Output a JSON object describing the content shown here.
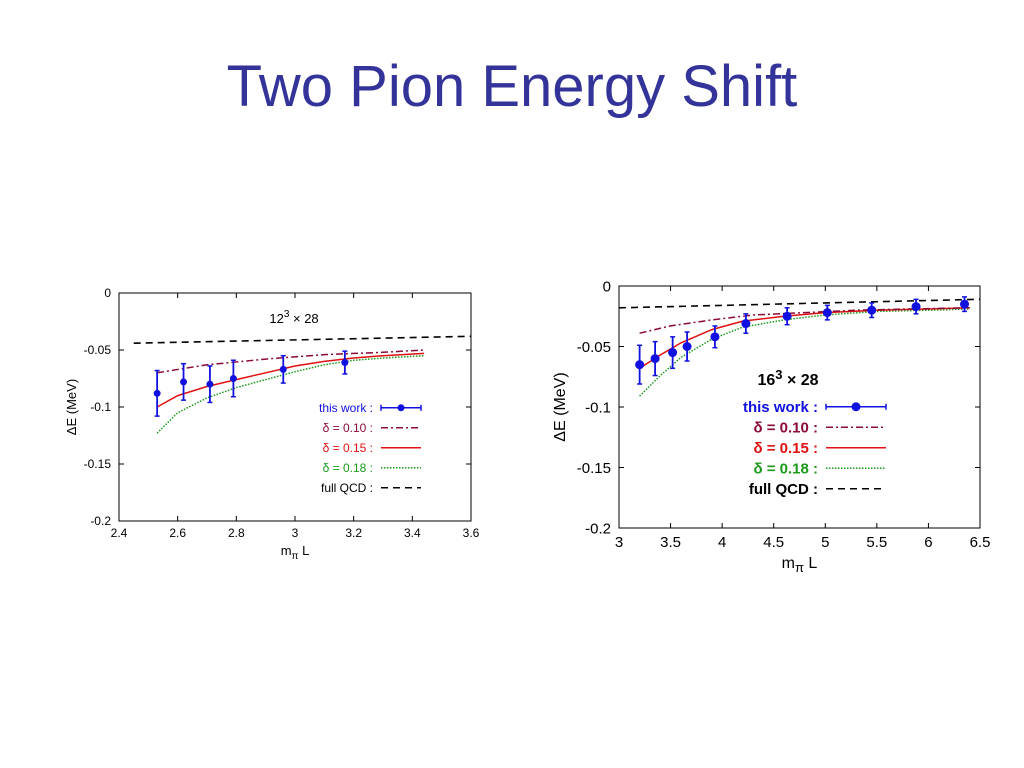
{
  "slide": {
    "title": "Two Pion Energy Shift"
  },
  "colors": {
    "title": "#333399",
    "this_work": "#1010e0",
    "delta_010": "#8b0a3a",
    "delta_015": "#e01010",
    "delta_018": "#1a9a1a",
    "full_qcd": "#000000"
  },
  "chart_data": [
    {
      "type": "scatter",
      "title": "12^3 × 28",
      "title_base": "12",
      "title_exp": "3",
      "title_rest": " × 28",
      "xlabel": "mπ L",
      "xlabel_main": "m",
      "xlabel_sub": "π",
      "xlabel_tail": " L",
      "ylabel": "ΔE (MeV)",
      "xlim": [
        2.4,
        3.6
      ],
      "ylim": [
        -0.2,
        0
      ],
      "xticks": [
        "2.4",
        "2.6",
        "2.8",
        "3",
        "3.2",
        "3.4",
        "3.6"
      ],
      "yticks": [
        "0",
        "-0.05",
        "-0.1",
        "-0.15",
        "-0.2"
      ],
      "grid": false,
      "legend_position": "right",
      "series": [
        {
          "name": "this work :",
          "style": "points",
          "color_key": "this_work",
          "x": [
            2.53,
            2.62,
            2.71,
            2.79,
            2.96,
            3.17
          ],
          "y": [
            -0.088,
            -0.078,
            -0.08,
            -0.075,
            -0.067,
            -0.061
          ],
          "err": [
            0.02,
            0.016,
            0.016,
            0.016,
            0.012,
            0.01
          ]
        },
        {
          "name": "δ = 0.10 :",
          "style": "dashdot",
          "color_key": "delta_010",
          "x": [
            2.53,
            2.7,
            2.9,
            3.1,
            3.3,
            3.44
          ],
          "y": [
            -0.07,
            -0.063,
            -0.058,
            -0.054,
            -0.052,
            -0.05
          ]
        },
        {
          "name": "δ = 0.15 :",
          "style": "solid",
          "color_key": "delta_015",
          "x": [
            2.53,
            2.6,
            2.7,
            2.8,
            2.9,
            3.0,
            3.1,
            3.2,
            3.3,
            3.44
          ],
          "y": [
            -0.1,
            -0.09,
            -0.082,
            -0.076,
            -0.07,
            -0.064,
            -0.06,
            -0.057,
            -0.055,
            -0.053
          ]
        },
        {
          "name": "δ = 0.18 :",
          "style": "dotted",
          "color_key": "delta_018",
          "x": [
            2.53,
            2.6,
            2.7,
            2.8,
            2.9,
            3.0,
            3.1,
            3.2,
            3.3,
            3.44
          ],
          "y": [
            -0.123,
            -0.105,
            -0.092,
            -0.083,
            -0.076,
            -0.069,
            -0.063,
            -0.059,
            -0.057,
            -0.055
          ]
        },
        {
          "name": "full QCD :",
          "style": "dashed",
          "color_key": "full_qcd",
          "x": [
            2.45,
            3.6
          ],
          "y": [
            -0.044,
            -0.038
          ]
        }
      ]
    },
    {
      "type": "scatter",
      "title": "16^3 × 28",
      "title_base": "16",
      "title_exp": "3",
      "title_rest": " × 28",
      "xlabel": "mπ L",
      "xlabel_main": "m",
      "xlabel_sub": "π",
      "xlabel_tail": " L",
      "ylabel": "ΔE (MeV)",
      "xlim": [
        3,
        6.5
      ],
      "ylim": [
        -0.2,
        0
      ],
      "xticks": [
        "3",
        "3.5",
        "4",
        "4.5",
        "5",
        "5.5",
        "6",
        "6.5"
      ],
      "yticks": [
        "0",
        "-0.05",
        "-0.1",
        "-0.15",
        "-0.2"
      ],
      "grid": false,
      "legend_position": "center",
      "series": [
        {
          "name": "this work :",
          "style": "points",
          "color_key": "this_work",
          "x": [
            3.2,
            3.35,
            3.52,
            3.66,
            3.93,
            4.23,
            4.63,
            5.02,
            5.45,
            5.88,
            6.35
          ],
          "y": [
            -0.065,
            -0.06,
            -0.055,
            -0.05,
            -0.042,
            -0.031,
            -0.025,
            -0.022,
            -0.02,
            -0.017,
            -0.015
          ],
          "err": [
            0.016,
            0.014,
            0.013,
            0.012,
            0.009,
            0.008,
            0.007,
            0.006,
            0.006,
            0.006,
            0.006
          ]
        },
        {
          "name": "δ = 0.10 :",
          "style": "dashdot",
          "color_key": "delta_010",
          "x": [
            3.2,
            3.5,
            3.9,
            4.3,
            4.8,
            5.3,
            5.8,
            6.4
          ],
          "y": [
            -0.039,
            -0.033,
            -0.028,
            -0.024,
            -0.022,
            -0.02,
            -0.019,
            -0.018
          ]
        },
        {
          "name": "δ = 0.15 :",
          "style": "solid",
          "color_key": "delta_015",
          "x": [
            3.2,
            3.4,
            3.6,
            3.9,
            4.2,
            4.6,
            5.0,
            5.5,
            6.0,
            6.4
          ],
          "y": [
            -0.068,
            -0.057,
            -0.047,
            -0.036,
            -0.029,
            -0.025,
            -0.022,
            -0.02,
            -0.019,
            -0.018
          ]
        },
        {
          "name": "δ = 0.18 :",
          "style": "dotted",
          "color_key": "delta_018",
          "x": [
            3.2,
            3.4,
            3.6,
            3.9,
            4.2,
            4.6,
            5.0,
            5.5,
            6.0,
            6.4
          ],
          "y": [
            -0.091,
            -0.074,
            -0.059,
            -0.044,
            -0.034,
            -0.028,
            -0.024,
            -0.021,
            -0.02,
            -0.019
          ]
        },
        {
          "name": "full QCD :",
          "style": "dashed",
          "color_key": "full_qcd",
          "x": [
            3.0,
            4.0,
            5.0,
            6.0,
            6.5
          ],
          "y": [
            -0.018,
            -0.016,
            -0.014,
            -0.012,
            -0.011
          ]
        }
      ]
    }
  ]
}
